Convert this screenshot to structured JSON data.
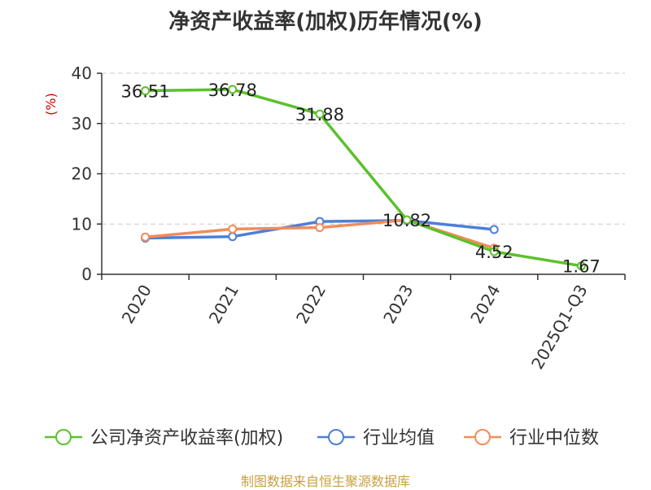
{
  "chart_data": {
    "type": "line",
    "title": "净资产收益率(加权)历年情况(%)",
    "ylabel": "(%)",
    "ylim": [
      0,
      40
    ],
    "yticks": [
      0,
      10,
      20,
      30,
      40
    ],
    "categories": [
      "2020",
      "2021",
      "2022",
      "2023",
      "2024",
      "2025Q1-Q3"
    ],
    "grid": true,
    "legend_position": "bottom",
    "series": [
      {
        "name": "公司净资产收益率(加权)",
        "color": "#5bc12b",
        "values": [
          36.51,
          36.78,
          31.88,
          10.82,
          4.52,
          1.67
        ],
        "labels": [
          "36.51",
          "36.78",
          "31.88",
          "10.82",
          "4.52",
          "1.67"
        ]
      },
      {
        "name": "行业均值",
        "color": "#4c7fd8",
        "values": [
          7.2,
          7.5,
          10.5,
          10.7,
          8.9,
          null
        ]
      },
      {
        "name": "行业中位数",
        "color": "#f28c5a",
        "values": [
          7.4,
          9.0,
          9.3,
          10.8,
          5.2,
          null
        ]
      }
    ]
  },
  "source": "制图数据来自恒生聚源数据库"
}
